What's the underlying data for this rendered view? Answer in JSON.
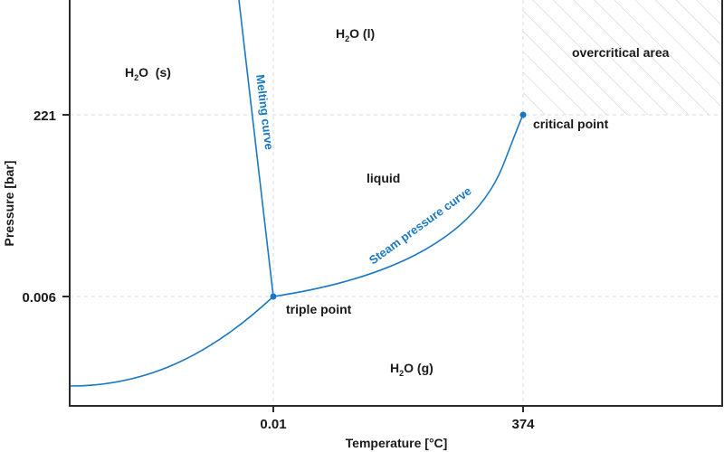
{
  "chart_data": {
    "type": "line",
    "title": "",
    "xlabel": "Temperature [°C]",
    "ylabel": "Pressure [bar]",
    "x_ticks": [
      "0.01",
      "374"
    ],
    "y_ticks": [
      "221",
      "0.006"
    ],
    "grid": "dashed at tick values",
    "colors": {
      "curve": "#1a78c2",
      "text": "#1a1a1a",
      "axis": "#2b2b2b",
      "grid": "#d9d9d9",
      "hatch": "#c8c8c8"
    },
    "points": {
      "triple_point": {
        "label": "triple point",
        "temperature": 0.01,
        "pressure": 0.006
      },
      "critical_point": {
        "label": "critical point",
        "temperature": 374,
        "pressure": 221
      }
    },
    "series": [
      {
        "name": "Melting curve",
        "label": "Melting curve"
      },
      {
        "name": "Steam pressure curve",
        "label": "Steam pressure curve"
      },
      {
        "name": "Sublimation curve",
        "label": ""
      }
    ],
    "regions": {
      "solid": {
        "base": "H",
        "sub": "2",
        "rest": "O  (s)"
      },
      "liquid_phase": {
        "base": "H",
        "sub": "2",
        "rest": "O  (l)"
      },
      "gas": {
        "base": "H",
        "sub": "2",
        "rest": "O  (g)"
      },
      "liquid": "liquid",
      "overcritical": "overcritical area"
    }
  }
}
